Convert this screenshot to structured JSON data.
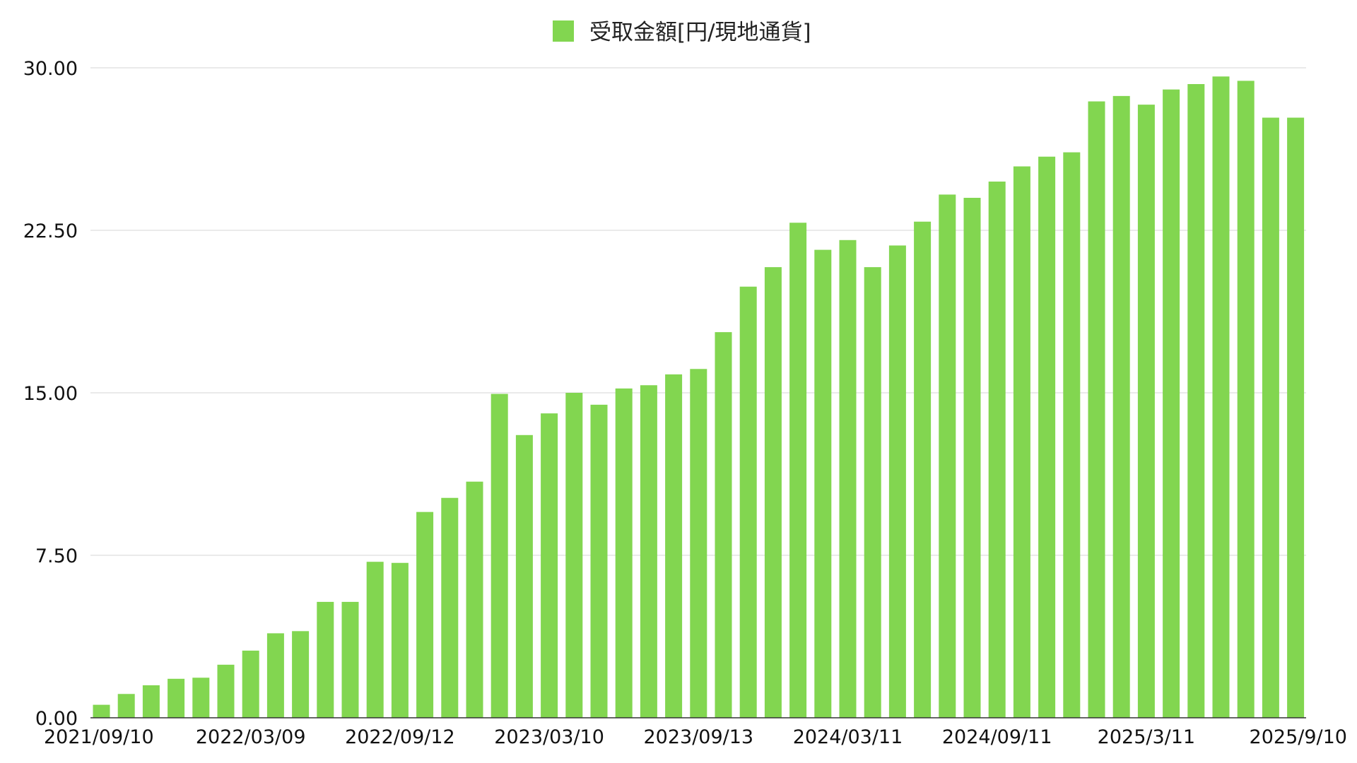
{
  "chart_data": {
    "type": "bar",
    "title": "",
    "xlabel": "",
    "ylabel": "",
    "legend": {
      "placement": "top-center"
    },
    "grid": true,
    "ylim": [
      0,
      30
    ],
    "yticks": [
      "0.00",
      "7.50",
      "15.00",
      "22.50",
      "30.00"
    ],
    "xtick_labels": [
      "2021/09/10",
      "2022/03/09",
      "2022/09/12",
      "2023/03/10",
      "2023/09/13",
      "2024/03/11",
      "2024/09/11",
      "2025/3/11",
      "2025/9/10"
    ],
    "colors": {
      "bar": "#82d650",
      "grid": "#e3e3e3",
      "axis": "#333333"
    },
    "series": [
      {
        "name": "受取金額[円/現地通貨]",
        "values": [
          0.6,
          1.1,
          1.5,
          1.8,
          1.85,
          2.45,
          3.1,
          3.9,
          4.0,
          5.35,
          5.35,
          7.2,
          7.15,
          9.5,
          10.15,
          10.9,
          14.95,
          13.05,
          14.05,
          15.0,
          14.45,
          15.2,
          15.35,
          15.85,
          16.1,
          17.8,
          19.9,
          20.8,
          22.85,
          21.6,
          22.05,
          20.8,
          21.8,
          22.9,
          24.15,
          24.0,
          24.75,
          25.45,
          25.9,
          26.1,
          28.45,
          28.7,
          28.3,
          29.0,
          29.25,
          29.6,
          29.4,
          27.7,
          27.7
        ]
      }
    ]
  }
}
